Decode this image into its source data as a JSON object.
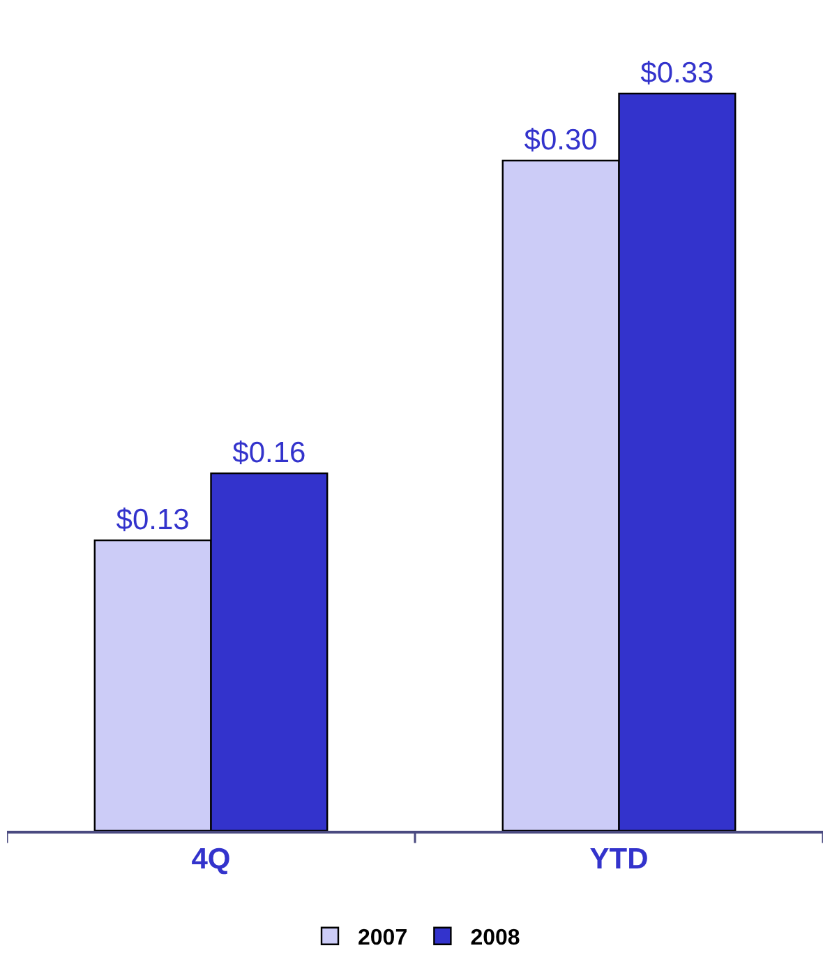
{
  "chart_data": {
    "type": "bar",
    "categories": [
      "4Q",
      "YTD"
    ],
    "series": [
      {
        "name": "2007",
        "color": "#ccccf7",
        "values": [
          0.13,
          0.3
        ],
        "value_labels": [
          "$0.13",
          "$0.30"
        ]
      },
      {
        "name": "2008",
        "color": "#3333cc",
        "values": [
          0.16,
          0.33
        ],
        "value_labels": [
          "$0.16",
          "$0.33"
        ]
      }
    ],
    "legend": "bottom",
    "grid": false
  }
}
